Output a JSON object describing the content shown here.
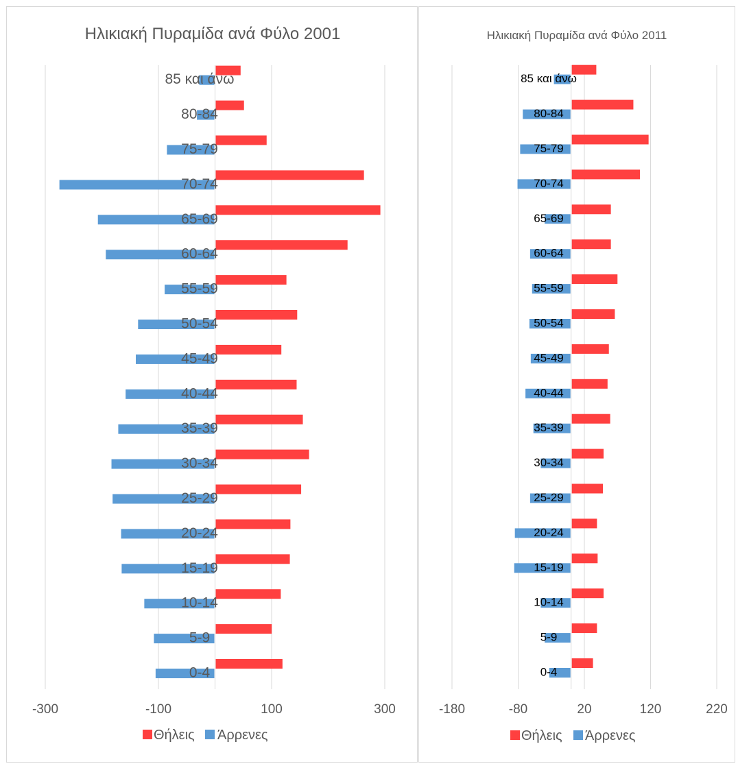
{
  "colors": {
    "female": "#ff4040",
    "male": "#5b9bd5",
    "grid": "#d9d9d9"
  },
  "chart_data": [
    {
      "type": "bar",
      "orientation": "horizontal",
      "title": "Ηλικιακή Πυραμίδα ανά Φύλο 2001",
      "categories": [
        "0-4",
        "5-9",
        "10-14",
        "15-19",
        "20-24",
        "25-29",
        "30-34",
        "35-39",
        "40-44",
        "45-49",
        "50-54",
        "55-59",
        "60-64",
        "65-69",
        "70-74",
        "75-79",
        "80-84",
        "85 και άνω"
      ],
      "series": [
        {
          "name": "Θήλεις",
          "values": [
            118,
            99,
            115,
            131,
            132,
            151,
            165,
            154,
            143,
            116,
            144,
            125,
            233,
            291,
            262,
            90,
            50,
            44
          ]
        },
        {
          "name": "Άρρενες",
          "values": [
            -105,
            -108,
            -125,
            -165,
            -166,
            -181,
            -183,
            -171,
            -158,
            -140,
            -136,
            -89,
            -193,
            -207,
            -275,
            -85,
            -32,
            -28
          ]
        }
      ],
      "xlim": [
        -300,
        300
      ],
      "xticks": [
        "-300",
        "-100",
        "100",
        "300"
      ],
      "grid": true,
      "legend": "bottom"
    },
    {
      "type": "bar",
      "orientation": "horizontal",
      "title": "Ηλικιακή Πυραμίδα ανά Φύλο 2011",
      "categories": [
        "0-4",
        "5-9",
        "10-14",
        "15-19",
        "20-24",
        "25-29",
        "30-34",
        "35-39",
        "40-44",
        "45-49",
        "50-54",
        "55-59",
        "60-64",
        "65-69",
        "70-74",
        "75-79",
        "80-84",
        "85 και άνω"
      ],
      "series": [
        {
          "name": "Θήλεις",
          "values": [
            32,
            38,
            48,
            39,
            38,
            47,
            48,
            58,
            54,
            56,
            65,
            69,
            59,
            59,
            103,
            116,
            93,
            37
          ]
        },
        {
          "name": "Άρρενες",
          "values": [
            -33,
            -40,
            -46,
            -86,
            -85,
            -62,
            -46,
            -57,
            -69,
            -61,
            -63,
            -59,
            -62,
            -40,
            -81,
            -77,
            -73,
            -26
          ]
        }
      ],
      "xlim": [
        -180,
        220
      ],
      "xticks": [
        "-180",
        "-80",
        "20",
        "120",
        "220"
      ],
      "grid": true,
      "legend": "bottom"
    }
  ]
}
